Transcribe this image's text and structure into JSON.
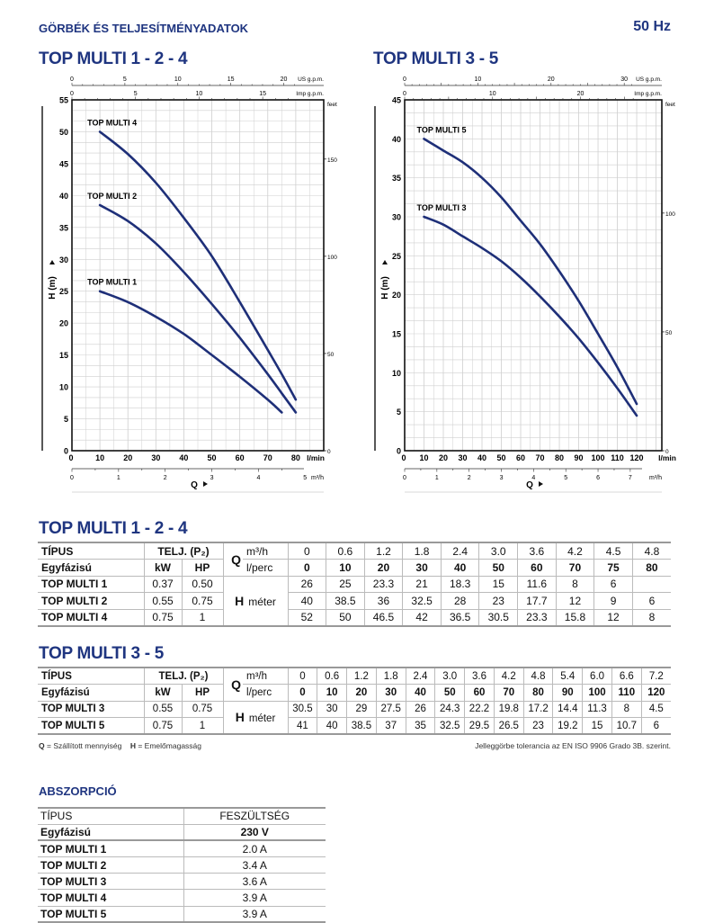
{
  "header": {
    "title": "GÖRBÉK ÉS TELJESÍTMÉNYADATOK",
    "frequency": "50 Hz"
  },
  "colors": {
    "brand": "#1f3580",
    "curve": "#1e2f78",
    "grid": "#cfcfcf"
  },
  "chart_data": [
    {
      "type": "line",
      "title": "TOP MULTI 1 - 2 - 4",
      "xlabel": "Q",
      "ylabel": "H (m)",
      "x_unit": "l/min",
      "xlim": [
        0,
        90
      ],
      "ylim": [
        0,
        55
      ],
      "xticks": [
        0,
        10,
        20,
        30,
        40,
        50,
        60,
        70,
        80
      ],
      "yticks": [
        0,
        5,
        10,
        15,
        20,
        25,
        30,
        35,
        40,
        45,
        50,
        55
      ],
      "us_gpm": {
        "label": "US g.p.m.",
        "ticks": [
          0,
          5,
          10,
          15,
          20
        ]
      },
      "imp_gpm": {
        "label": "Imp g.p.m.",
        "ticks": [
          0,
          5,
          10,
          15
        ]
      },
      "m3h": {
        "label": "m³/h",
        "ticks": [
          0,
          1,
          2,
          3,
          4,
          5
        ]
      },
      "feet": {
        "label": "feet",
        "ticks": [
          0,
          50,
          100,
          150
        ]
      },
      "grid": true,
      "series": [
        {
          "name": "TOP MULTI 4",
          "x": [
            10,
            20,
            30,
            40,
            50,
            60,
            70,
            75,
            80
          ],
          "y": [
            50,
            46.5,
            42,
            36.5,
            30.5,
            23.3,
            15.8,
            12,
            8
          ]
        },
        {
          "name": "TOP MULTI 2",
          "x": [
            10,
            20,
            30,
            40,
            50,
            60,
            70,
            75,
            80
          ],
          "y": [
            38.5,
            36,
            32.5,
            28,
            23,
            17.7,
            12,
            9,
            6
          ]
        },
        {
          "name": "TOP MULTI 1",
          "x": [
            10,
            20,
            30,
            40,
            50,
            60,
            70,
            75
          ],
          "y": [
            25,
            23.3,
            21,
            18.3,
            15,
            11.6,
            8,
            6
          ]
        }
      ]
    },
    {
      "type": "line",
      "title": "TOP MULTI 3 - 5",
      "xlabel": "Q",
      "ylabel": "H (m)",
      "x_unit": "l/min",
      "xlim": [
        0,
        133
      ],
      "ylim": [
        0,
        45
      ],
      "xticks": [
        0,
        10,
        20,
        30,
        40,
        50,
        60,
        70,
        80,
        90,
        100,
        110,
        120
      ],
      "yticks": [
        0,
        5,
        10,
        15,
        20,
        25,
        30,
        35,
        40,
        45
      ],
      "us_gpm": {
        "label": "US g.p.m.",
        "ticks": [
          0,
          10,
          20,
          30
        ]
      },
      "imp_gpm": {
        "label": "Imp g.p.m.",
        "ticks": [
          0,
          10,
          20
        ]
      },
      "m3h": {
        "label": "m³/h",
        "ticks": [
          0,
          1,
          2,
          3,
          4,
          5,
          6,
          7
        ]
      },
      "feet": {
        "label": "feet",
        "ticks": [
          0,
          50,
          100
        ]
      },
      "grid": true,
      "series": [
        {
          "name": "TOP MULTI 5",
          "x": [
            10,
            20,
            30,
            40,
            50,
            60,
            70,
            80,
            90,
            100,
            110,
            120
          ],
          "y": [
            40,
            38.5,
            37,
            35,
            32.5,
            29.5,
            26.5,
            23,
            19.2,
            15,
            10.7,
            6
          ]
        },
        {
          "name": "TOP MULTI 3",
          "x": [
            10,
            20,
            30,
            40,
            50,
            60,
            70,
            80,
            90,
            100,
            110,
            120
          ],
          "y": [
            30,
            29,
            27.5,
            26,
            24.3,
            22.2,
            19.8,
            17.2,
            14.4,
            11.3,
            8,
            4.5
          ]
        }
      ]
    }
  ],
  "table1": {
    "title": "TOP MULTI 1 - 2 - 4",
    "type_label": "TÍPUS",
    "phase_label": "Egyfázisú",
    "power_label": "TELJ. (P₂)",
    "kw_label": "kW",
    "hp_label": "HP",
    "q_label": "Q",
    "m3h_label": "m³/h",
    "lpm_label": "l/perc",
    "h_label": "H",
    "h_unit": "méter",
    "m3h": [
      "0",
      "0.6",
      "1.2",
      "1.8",
      "2.4",
      "3.0",
      "3.6",
      "4.2",
      "4.5",
      "4.8"
    ],
    "lpm": [
      "0",
      "10",
      "20",
      "30",
      "40",
      "50",
      "60",
      "70",
      "75",
      "80"
    ],
    "rows": [
      {
        "model": "TOP MULTI 1",
        "kw": "0.37",
        "hp": "0.50",
        "h": [
          "26",
          "25",
          "23.3",
          "21",
          "18.3",
          "15",
          "11.6",
          "8",
          "6",
          ""
        ]
      },
      {
        "model": "TOP MULTI 2",
        "kw": "0.55",
        "hp": "0.75",
        "h": [
          "40",
          "38.5",
          "36",
          "32.5",
          "28",
          "23",
          "17.7",
          "12",
          "9",
          "6"
        ]
      },
      {
        "model": "TOP MULTI 4",
        "kw": "0.75",
        "hp": "1",
        "h": [
          "52",
          "50",
          "46.5",
          "42",
          "36.5",
          "30.5",
          "23.3",
          "15.8",
          "12",
          "8"
        ]
      }
    ]
  },
  "table2": {
    "title": "TOP MULTI 3 - 5",
    "type_label": "TÍPUS",
    "phase_label": "Egyfázisú",
    "power_label": "TELJ. (P₂)",
    "kw_label": "kW",
    "hp_label": "HP",
    "q_label": "Q",
    "m3h_label": "m³/h",
    "lpm_label": "l/perc",
    "h_label": "H",
    "h_unit": "méter",
    "m3h": [
      "0",
      "0.6",
      "1.2",
      "1.8",
      "2.4",
      "3.0",
      "3.6",
      "4.2",
      "4.8",
      "5.4",
      "6.0",
      "6.6",
      "7.2"
    ],
    "lpm": [
      "0",
      "10",
      "20",
      "30",
      "40",
      "50",
      "60",
      "70",
      "80",
      "90",
      "100",
      "110",
      "120"
    ],
    "rows": [
      {
        "model": "TOP MULTI 3",
        "kw": "0.55",
        "hp": "0.75",
        "h": [
          "30.5",
          "30",
          "29",
          "27.5",
          "26",
          "24.3",
          "22.2",
          "19.8",
          "17.2",
          "14.4",
          "11.3",
          "8",
          "4.5"
        ]
      },
      {
        "model": "TOP MULTI 5",
        "kw": "0.75",
        "hp": "1",
        "h": [
          "41",
          "40",
          "38.5",
          "37",
          "35",
          "32.5",
          "29.5",
          "26.5",
          "23",
          "19.2",
          "15",
          "10.7",
          "6"
        ]
      }
    ]
  },
  "footnotes": {
    "q_key": "Q",
    "q_text": "= Szállított mennyiség",
    "h_key": "H",
    "h_text": "= Emelőmagasság",
    "tolerance": "Jelleggörbe tolerancia az EN ISO 9906 Grado 3B. szerint."
  },
  "absorption": {
    "title": "ABSZORPCIÓ",
    "type_label": "TÍPUS",
    "voltage_label": "FESZÜLTSÉG",
    "phase_label": "Egyfázisú",
    "voltage": "230 V",
    "rows": [
      {
        "model": "TOP MULTI 1",
        "current": "2.0 A"
      },
      {
        "model": "TOP MULTI 2",
        "current": "3.4 A"
      },
      {
        "model": "TOP MULTI 3",
        "current": "3.6 A"
      },
      {
        "model": "TOP MULTI 4",
        "current": "3.9 A"
      },
      {
        "model": "TOP MULTI 5",
        "current": "3.9 A"
      }
    ]
  }
}
